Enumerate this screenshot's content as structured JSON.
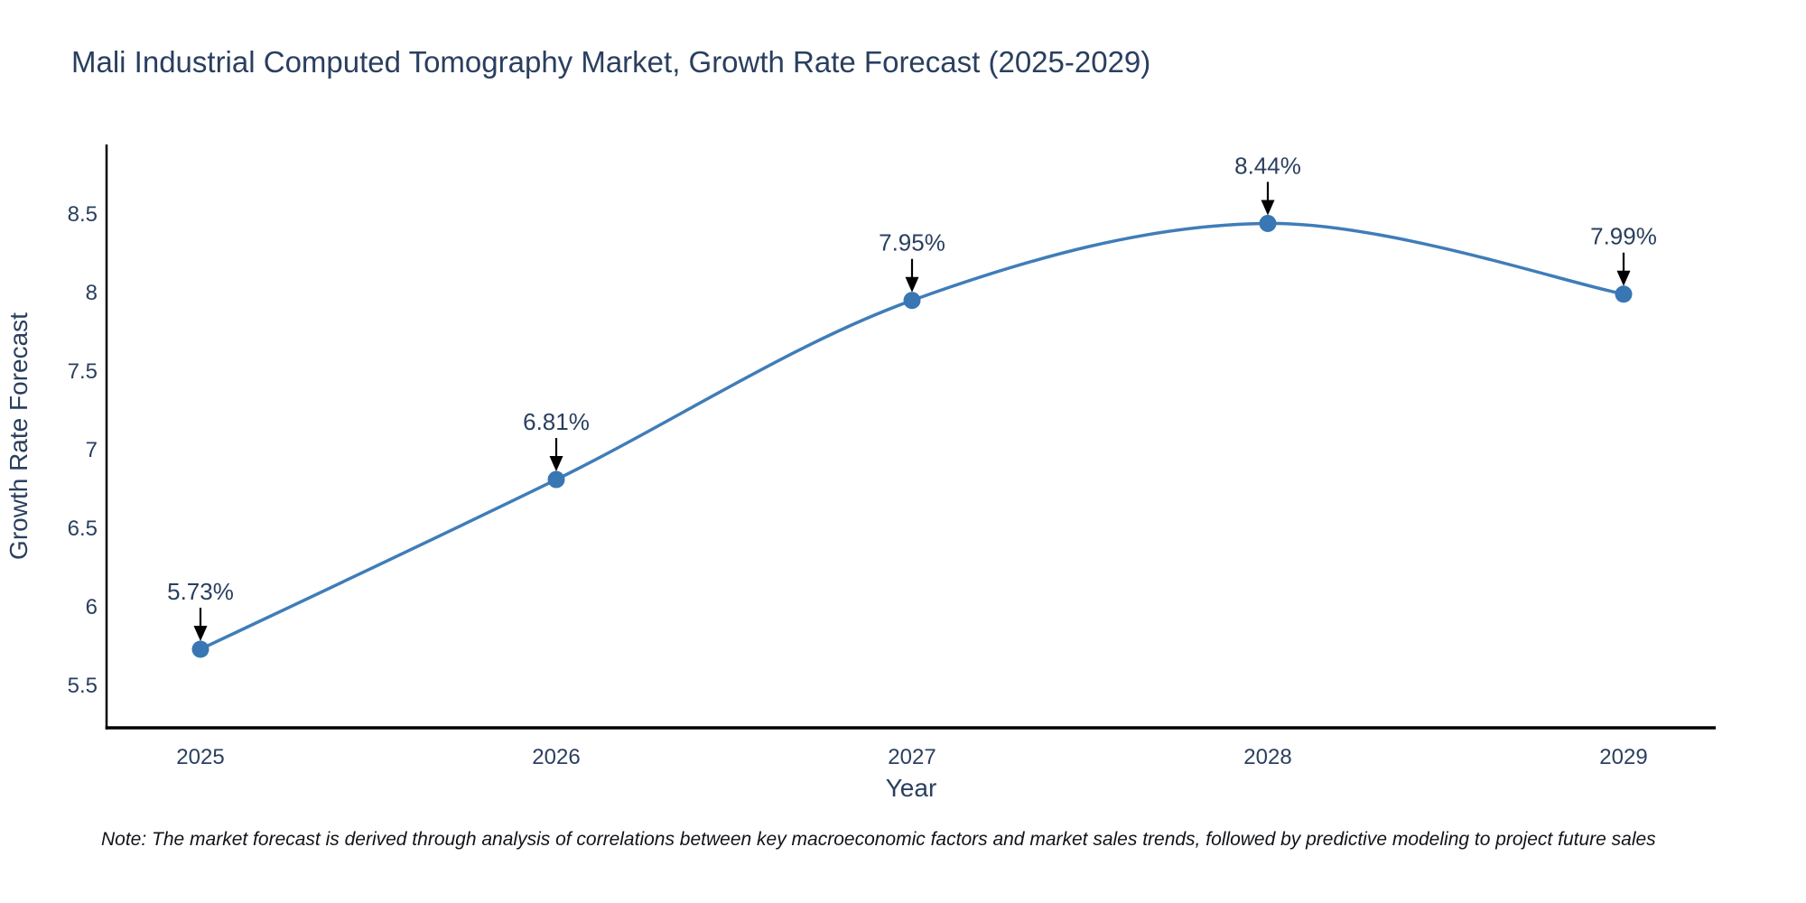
{
  "title": "Mali Industrial Computed Tomography Market, Growth Rate Forecast (2025-2029)",
  "note": "Note: The market forecast is derived through analysis of correlations between key macroeconomic factors and market sales trends, followed by predictive modeling to project future sales",
  "chart_data": {
    "type": "line",
    "title": "Mali Industrial Computed Tomography Market, Growth Rate Forecast (2025-2029)",
    "xlabel": "Year",
    "ylabel": "Growth Rate Forecast",
    "x": [
      2025,
      2026,
      2027,
      2028,
      2029
    ],
    "values": [
      5.73,
      6.81,
      7.95,
      8.44,
      7.99
    ],
    "point_labels": [
      "5.73%",
      "6.81%",
      "7.95%",
      "8.44%",
      "7.99%"
    ],
    "xticks": [
      "2025",
      "2026",
      "2027",
      "2028",
      "2029"
    ],
    "yticks": [
      5.5,
      6,
      6.5,
      7,
      7.5,
      8,
      8.5
    ],
    "ylim": [
      5.23,
      8.94
    ],
    "line_shape": "spline",
    "grid": false,
    "legend": "none",
    "colors": {
      "line": "#3f7db8",
      "marker": "#3876b4",
      "label_text": "#2a3f5f",
      "tick_text": "#2a3f5f",
      "axis_line": "#000000",
      "arrow": "#000000"
    }
  }
}
